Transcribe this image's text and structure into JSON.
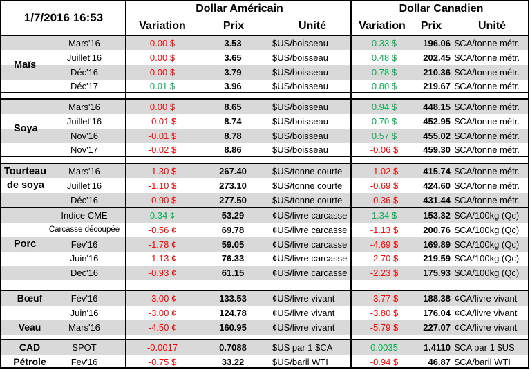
{
  "header": {
    "timestamp": "1/7/2016 16:53",
    "usd_group": "Dollar Américain",
    "cad_group": "Dollar Canadien",
    "col_variation": "Variation",
    "col_price": "Prix",
    "col_unit": "Unité"
  },
  "colors": {
    "positive": "#00b050",
    "negative": "#ff0000",
    "shade": "#d9d9d9"
  },
  "groups": [
    {
      "label_lines": [
        "Maïs"
      ],
      "rows": [
        {
          "contract": "Mars'16",
          "usd_var": "0.00 $",
          "usd_sign": "neg",
          "usd_price": "3.53",
          "usd_unit": "$US/boisseau",
          "cad_var": "0.33 $",
          "cad_sign": "pos",
          "cad_price": "196.06",
          "cad_unit": "$CA/tonne métr."
        },
        {
          "contract": "Juillet'16",
          "usd_var": "0.00 $",
          "usd_sign": "neg",
          "usd_price": "3.65",
          "usd_unit": "$US/boisseau",
          "cad_var": "0.48 $",
          "cad_sign": "pos",
          "cad_price": "202.45",
          "cad_unit": "$CA/tonne métr."
        },
        {
          "contract": "Déc'16",
          "usd_var": "0.00 $",
          "usd_sign": "neg",
          "usd_price": "3.79",
          "usd_unit": "$US/boisseau",
          "cad_var": "0.78 $",
          "cad_sign": "pos",
          "cad_price": "210.36",
          "cad_unit": "$CA/tonne métr."
        },
        {
          "contract": "Déc'17",
          "usd_var": "0.01 $",
          "usd_sign": "pos",
          "usd_price": "3.96",
          "usd_unit": "$US/boisseau",
          "cad_var": "0.80 $",
          "cad_sign": "pos",
          "cad_price": "219.67",
          "cad_unit": "$CA/tonne métr."
        }
      ]
    },
    {
      "label_lines": [
        "Soya"
      ],
      "rows": [
        {
          "contract": "Mars'16",
          "usd_var": "0.00 $",
          "usd_sign": "neg",
          "usd_price": "8.65",
          "usd_unit": "$US/boisseau",
          "cad_var": "0.94 $",
          "cad_sign": "pos",
          "cad_price": "448.15",
          "cad_unit": "$CA/tonne métr."
        },
        {
          "contract": "Juillet'16",
          "usd_var": "-0.01 $",
          "usd_sign": "neg",
          "usd_price": "8.74",
          "usd_unit": "$US/boisseau",
          "cad_var": "0.70 $",
          "cad_sign": "pos",
          "cad_price": "452.95",
          "cad_unit": "$CA/tonne métr."
        },
        {
          "contract": "Nov'16",
          "usd_var": "-0.01 $",
          "usd_sign": "neg",
          "usd_price": "8.78",
          "usd_unit": "$US/boisseau",
          "cad_var": "0.57 $",
          "cad_sign": "pos",
          "cad_price": "455.02",
          "cad_unit": "$CA/tonne métr."
        },
        {
          "contract": "Nov'17",
          "usd_var": "-0.02 $",
          "usd_sign": "neg",
          "usd_price": "8.86",
          "usd_unit": "$US/boisseau",
          "cad_var": "-0.06 $",
          "cad_sign": "neg",
          "cad_price": "459.30",
          "cad_unit": "$CA/tonne métr."
        }
      ]
    },
    {
      "label_lines": [
        "Tourteau",
        "de soya"
      ],
      "rows": [
        {
          "contract": "Mars'16",
          "usd_var": "-1.30 $",
          "usd_sign": "neg",
          "usd_price": "267.40",
          "usd_unit": "$US/tonne courte",
          "cad_var": "-1.02 $",
          "cad_sign": "neg",
          "cad_price": "415.74",
          "cad_unit": "$CA/tonne métr."
        },
        {
          "contract": "Juillet'16",
          "usd_var": "-1.10 $",
          "usd_sign": "neg",
          "usd_price": "273.10",
          "usd_unit": "$US/tonne courte",
          "cad_var": "-0.69 $",
          "cad_sign": "neg",
          "cad_price": "424.60",
          "cad_unit": "$CA/tonne métr."
        },
        {
          "contract": "Déc'16",
          "usd_var": "-0.90 $",
          "usd_sign": "neg",
          "usd_price": "277.50",
          "usd_unit": "$US/tonne courte",
          "cad_var": "-0.36 $",
          "cad_sign": "neg",
          "cad_price": "431.44",
          "cad_unit": "$CA/tonne métr."
        }
      ]
    },
    {
      "label_lines": [
        "Porc"
      ],
      "rows": [
        {
          "contract": "Indice CME",
          "usd_var": "0.34 ¢",
          "usd_sign": "pos",
          "usd_price": "53.29",
          "usd_unit": "¢US/livre carcasse",
          "cad_var": "1.34 $",
          "cad_sign": "pos",
          "cad_price": "153.32",
          "cad_unit": "$CA/100kg (Qc)"
        },
        {
          "contract": "Carcasse découpée",
          "usd_var": "-0.56 ¢",
          "usd_sign": "neg",
          "usd_price": "69.78",
          "usd_unit": "¢US/livre carcasse",
          "cad_var": "-1.13 $",
          "cad_sign": "neg",
          "cad_price": "200.76",
          "cad_unit": "$CA/100kg (Qc)"
        },
        {
          "contract": "Fév'16",
          "usd_var": "-1.78 ¢",
          "usd_sign": "neg",
          "usd_price": "59.05",
          "usd_unit": "¢US/livre carcasse",
          "cad_var": "-4.69 $",
          "cad_sign": "neg",
          "cad_price": "169.89",
          "cad_unit": "$CA/100kg (Qc)"
        },
        {
          "contract": "Juin'16",
          "usd_var": "-1.13 ¢",
          "usd_sign": "neg",
          "usd_price": "76.33",
          "usd_unit": "¢US/livre carcasse",
          "cad_var": "-2.70 $",
          "cad_sign": "neg",
          "cad_price": "219.59",
          "cad_unit": "$CA/100kg (Qc)"
        },
        {
          "contract": "Dec'16",
          "usd_var": "-0.93 ¢",
          "usd_sign": "neg",
          "usd_price": "61.15",
          "usd_unit": "¢US/livre carcasse",
          "cad_var": "-2.23 $",
          "cad_sign": "neg",
          "cad_price": "175.93",
          "cad_unit": "$CA/100kg (Qc)"
        }
      ]
    },
    {
      "label_lines": [],
      "row_labels": [
        "Bœuf",
        "",
        "Veau"
      ],
      "rows": [
        {
          "contract": "Fév'16",
          "usd_var": "-3.00 ¢",
          "usd_sign": "neg",
          "usd_price": "133.53",
          "usd_unit": "¢US/livre vivant",
          "cad_var": "-3.77 $",
          "cad_sign": "neg",
          "cad_price": "188.38",
          "cad_unit": "¢CA/livre vivant"
        },
        {
          "contract": "Juin'16",
          "usd_var": "-3.00 ¢",
          "usd_sign": "neg",
          "usd_price": "124.78",
          "usd_unit": "¢US/livre vivant",
          "cad_var": "-3.80 $",
          "cad_sign": "neg",
          "cad_price": "176.04",
          "cad_unit": "¢CA/livre vivant"
        },
        {
          "contract": "Mars'16",
          "usd_var": "-4.50 ¢",
          "usd_sign": "neg",
          "usd_price": "160.95",
          "usd_unit": "¢US/livre vivant",
          "cad_var": "-5.79 $",
          "cad_sign": "neg",
          "cad_price": "227.07",
          "cad_unit": "¢CA/livre vivant"
        }
      ]
    },
    {
      "label_lines": [],
      "row_labels": [
        "CAD",
        "Pétrole"
      ],
      "rows": [
        {
          "contract": "SPOT",
          "usd_var": "-0.0017",
          "usd_sign": "neg",
          "usd_price": "0.7088",
          "usd_unit": "$US par 1 $CA",
          "cad_var": "0.0035",
          "cad_sign": "pos",
          "cad_price": "1.4110",
          "cad_unit": "$CA par 1 $US"
        },
        {
          "contract": "Fev'16",
          "usd_var": "-0.75 $",
          "usd_sign": "neg",
          "usd_price": "33.22",
          "usd_unit": "$US/baril WTI",
          "cad_var": "-0.94 $",
          "cad_sign": "neg",
          "cad_price": "46.87",
          "cad_unit": "$CA/baril WTI"
        }
      ]
    }
  ]
}
